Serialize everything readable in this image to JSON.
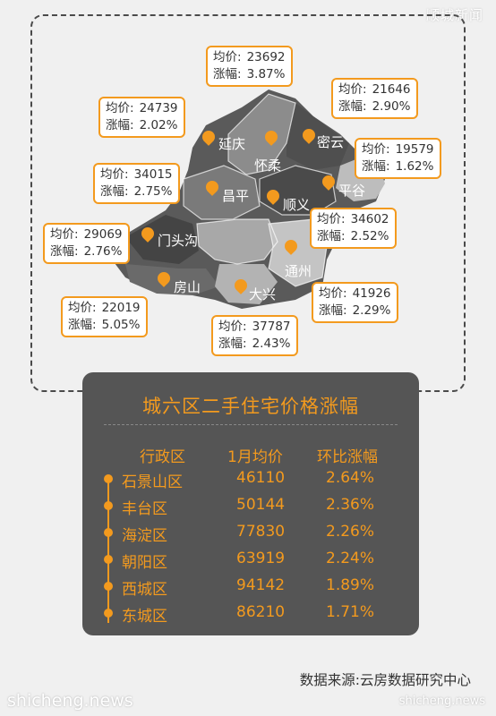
{
  "watermark_top": "顺城新闻",
  "watermark_bottom_left": "shicheng.news",
  "watermark_bottom_right": "shicheng.news",
  "colors": {
    "accent": "#f39a1e",
    "panel": "#555555",
    "map_dark": "#5a5a5a",
    "map_mid": "#8c8c8c",
    "map_light": "#bdbdbd"
  },
  "map": {
    "districts": [
      {
        "name": "延庆",
        "price_label": "均价:",
        "price": "24739",
        "change_label": "涨幅:",
        "change": "2.02%"
      },
      {
        "name": "怀柔",
        "price_label": "均价:",
        "price": "23692",
        "change_label": "涨幅:",
        "change": "3.87%"
      },
      {
        "name": "密云",
        "price_label": "均价:",
        "price": "21646",
        "change_label": "涨幅:",
        "change": "2.90%"
      },
      {
        "name": "平谷",
        "price_label": "均价:",
        "price": "19579",
        "change_label": "涨幅:",
        "change": "1.62%"
      },
      {
        "name": "昌平",
        "price_label": "均价:",
        "price": "34015",
        "change_label": "涨幅:",
        "change": "2.75%"
      },
      {
        "name": "顺义",
        "price_label": "均价:",
        "price": "34602",
        "change_label": "涨幅:",
        "change": "2.52%"
      },
      {
        "name": "门头沟",
        "price_label": "均价:",
        "price": "29069",
        "change_label": "涨幅:",
        "change": "2.76%"
      },
      {
        "name": "通州",
        "price_label": "均价:",
        "price": "41926",
        "change_label": "涨幅:",
        "change": "2.29%"
      },
      {
        "name": "房山",
        "price_label": "均价:",
        "price": "22019",
        "change_label": "涨幅:",
        "change": "5.05%"
      },
      {
        "name": "大兴",
        "price_label": "均价:",
        "price": "37787",
        "change_label": "涨幅:",
        "change": "2.43%"
      }
    ]
  },
  "table": {
    "title": "城六区二手住宅价格涨幅",
    "headers": [
      "行政区",
      "1月均价",
      "环比涨幅"
    ],
    "rows": [
      [
        "石景山区",
        "46110",
        "2.64%"
      ],
      [
        "丰台区",
        "50144",
        "2.36%"
      ],
      [
        "海淀区",
        "77830",
        "2.26%"
      ],
      [
        "朝阳区",
        "63919",
        "2.24%"
      ],
      [
        "西城区",
        "94142",
        "1.89%"
      ],
      [
        "东城区",
        "86210",
        "1.71%"
      ]
    ]
  },
  "source": "数据来源:云房数据研究中心"
}
